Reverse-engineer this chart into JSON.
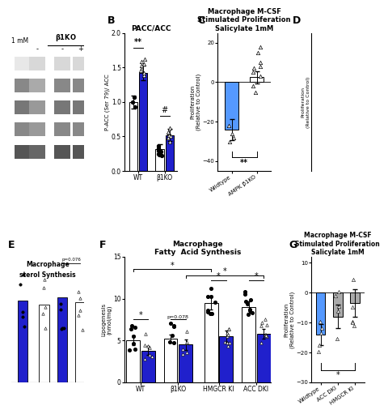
{
  "panel_B": {
    "title": "PACC/ACC",
    "ylabel": "P-ACC (Ser 79)/ ACC",
    "groups": [
      "WT",
      "β1KO"
    ],
    "bar1_vals": [
      1.0,
      0.32
    ],
    "bar2_vals": [
      1.42,
      0.52
    ],
    "bar1_color": "#ffffff",
    "bar2_color": "#2020cc",
    "ylim": [
      0,
      2.0
    ],
    "yticks": [
      0.0,
      0.5,
      1.0,
      1.5,
      2.0
    ],
    "scatter_wt_open": [
      1.38,
      1.48,
      1.52,
      1.58,
      1.62,
      1.42,
      1.55,
      1.45
    ],
    "scatter_b1ko_open": [
      0.42,
      0.48,
      0.55,
      0.52,
      0.62,
      0.5,
      0.56
    ],
    "scatter_wt_filled": [
      1.0,
      0.93,
      1.07
    ],
    "scatter_b1ko_filled": [
      0.22,
      0.28,
      0.25,
      0.33,
      0.36,
      0.3,
      0.28,
      0.24,
      0.31
    ]
  },
  "panel_C": {
    "title": "Macrophage M-CSF\nStimulated Proliferation\nSalicylate 1mM",
    "ylabel": "Proliferation\n(Relative to Control)",
    "groups": [
      "Wildtype",
      "AMPK β1KO"
    ],
    "bar1_val": -24.0,
    "bar2_val": 2.5,
    "bar1_color": "#5599ff",
    "bar2_color": "#ffffff",
    "ylim": [
      -45,
      25
    ],
    "yticks": [
      -40,
      -20,
      0,
      20
    ],
    "scatter1": [
      -22,
      -28,
      -30,
      -26
    ],
    "scatter2": [
      5,
      8,
      3,
      -2,
      10,
      7,
      -5,
      15,
      18
    ]
  },
  "panel_F": {
    "title": "Macrophage\nFatty  Acid Synthesis",
    "ylabel": "Lipogenesis\n(nmol/mg)",
    "groups": [
      "WT",
      "β1KO",
      "HMGCR KI",
      "ACC DKI"
    ],
    "bar1_vals": [
      5.0,
      5.2,
      9.5,
      9.0
    ],
    "bar2_vals": [
      3.8,
      4.5,
      5.5,
      5.8
    ],
    "bar1_color": "#ffffff",
    "bar2_color": "#2020cc",
    "ylim": [
      0,
      15
    ],
    "yticks": [
      0,
      5,
      10,
      15
    ]
  },
  "panel_G": {
    "title": "Macrophage M-CSF\nStimulated Proliferation\nSalicylate 1mM",
    "ylabel": "Proliferation\n(Relative to Control)",
    "groups": [
      "Wildtype",
      "ACC DKI",
      "HMGCR KI"
    ],
    "bar_vals": [
      -14.0,
      -8.0,
      -3.5
    ],
    "bar_colors": [
      "#5599ff",
      "#aaaaaa",
      "#aaaaaa"
    ],
    "ylim": [
      -30,
      12
    ],
    "yticks": [
      -30,
      -20,
      -10,
      0,
      10
    ]
  }
}
